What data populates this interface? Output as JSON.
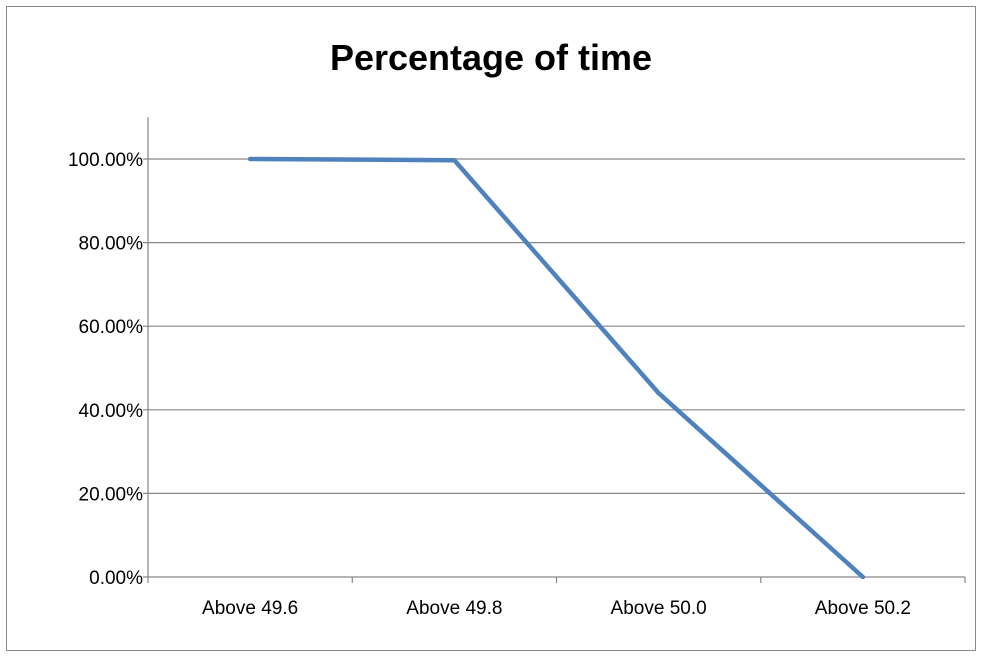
{
  "chart_data": {
    "type": "line",
    "title": "Percentage of time",
    "xlabel": "",
    "ylabel": "",
    "categories": [
      "Above 49.6",
      "Above 49.8",
      "Above 50.0",
      "Above 50.2"
    ],
    "series": [
      {
        "values": [
          100.0,
          99.7,
          44.0,
          0.0
        ],
        "color": "#4f81bd"
      }
    ],
    "y_ticks": [
      "0.00%",
      "20.00%",
      "40.00%",
      "60.00%",
      "80.00%",
      "100.00%"
    ],
    "ylim": [
      0,
      110
    ],
    "grid": true,
    "legend": "none"
  }
}
